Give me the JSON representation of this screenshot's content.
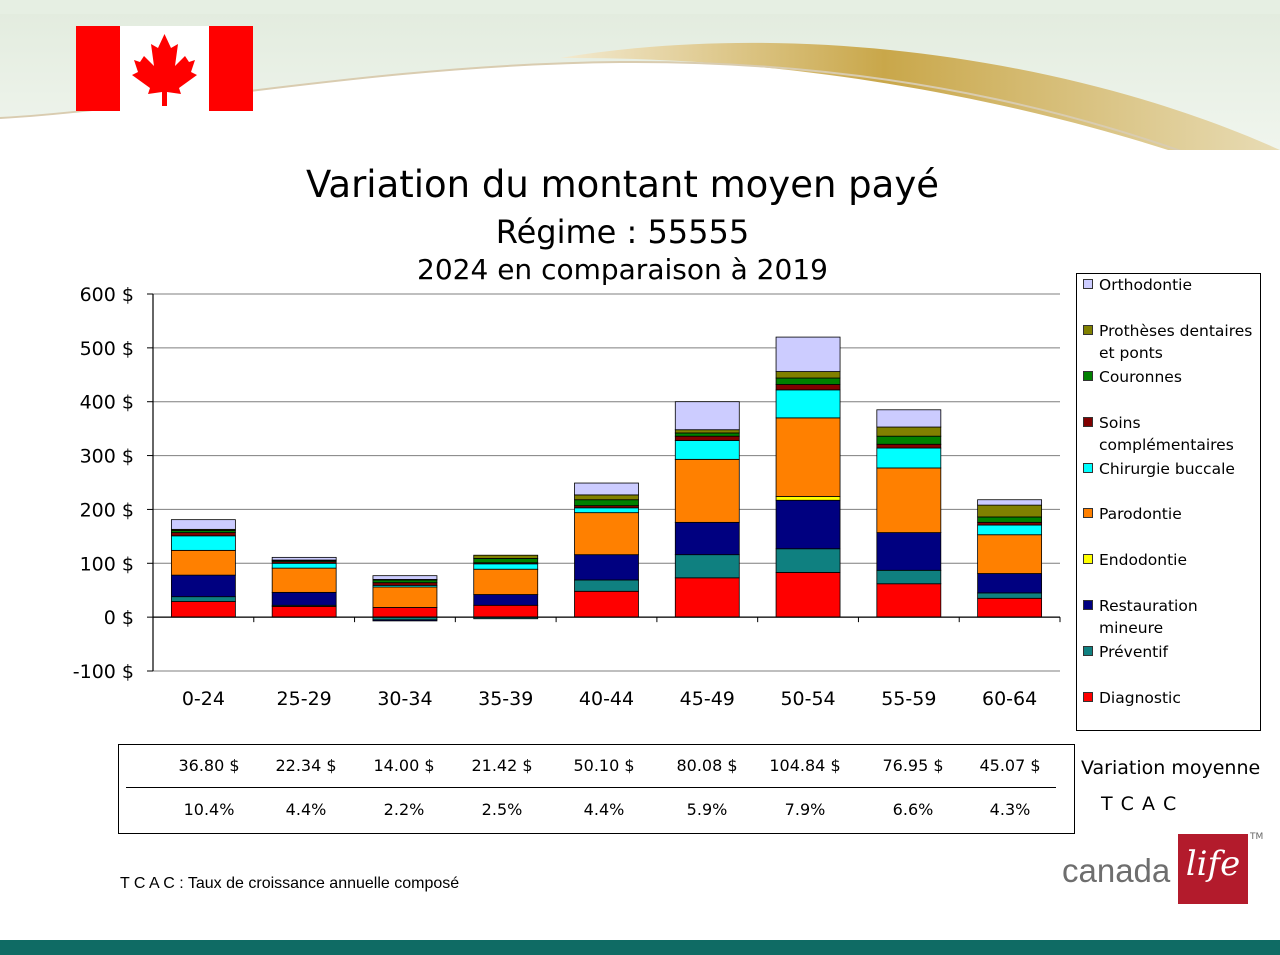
{
  "slide": {
    "title": "Variation du montant moyen payé",
    "subtitle": "Régime : 55555",
    "subtitle2": "2024 en comparaison à 2019",
    "footnote": "T C A C : Taux de croissance annuelle composé",
    "logo_text": "canada",
    "logo_script": "life",
    "logo_tm": "TM"
  },
  "colors": {
    "flag_red": "#ff0000",
    "footer_teal": "#0f6b64",
    "swoosh_gold": "#c9a74a",
    "logo_red": "#b31b2c"
  },
  "chart_data": {
    "type": "bar",
    "stacked": true,
    "categories": [
      "0-24",
      "25-29",
      "30-34",
      "35-39",
      "40-44",
      "45-49",
      "50-54",
      "55-59",
      "60-64"
    ],
    "yticks": [
      "-100 $",
      "0 $",
      "100 $",
      "200 $",
      "300 $",
      "400 $",
      "500 $",
      "600 $"
    ],
    "ylim": [
      -100,
      600
    ],
    "grid": true,
    "legend_position": "right",
    "series": [
      {
        "name": "Diagnostic",
        "color": "#ff0000",
        "values": [
          29,
          20,
          18,
          22,
          48,
          73,
          83,
          62,
          35
        ]
      },
      {
        "name": "Préventif",
        "color": "#0f8080",
        "values": [
          9,
          2,
          -5,
          -3,
          21,
          43,
          44,
          25,
          10
        ]
      },
      {
        "name": "Restauration mineure",
        "color": "#000080",
        "values": [
          40,
          24,
          -2,
          20,
          47,
          60,
          90,
          70,
          36
        ]
      },
      {
        "name": "Endodontie",
        "color": "#ffff00",
        "values": [
          0,
          0,
          0,
          0,
          0,
          0,
          7,
          0,
          0
        ]
      },
      {
        "name": "Parodontie",
        "color": "#ff8000",
        "values": [
          46,
          45,
          38,
          47,
          78,
          117,
          146,
          120,
          72
        ]
      },
      {
        "name": "Chirurgie buccale",
        "color": "#00ffff",
        "values": [
          27,
          9,
          3,
          10,
          9,
          35,
          52,
          37,
          18
        ]
      },
      {
        "name": "Soins complémentaires",
        "color": "#800000",
        "values": [
          6,
          3,
          5,
          2,
          4,
          8,
          10,
          7,
          5
        ]
      },
      {
        "name": "Couronnes",
        "color": "#008000",
        "values": [
          4,
          2,
          5,
          8,
          11,
          6,
          12,
          15,
          10
        ]
      },
      {
        "name": "Prothèses dentaires et ponts",
        "color": "#808000",
        "values": [
          2,
          1,
          1,
          6,
          9,
          6,
          12,
          17,
          22
        ]
      },
      {
        "name": "Orthodontie",
        "color": "#ccccff",
        "values": [
          18,
          5,
          7,
          0,
          22,
          52,
          64,
          32,
          10
        ]
      }
    ],
    "legend_order": [
      "Orthodontie",
      "Prothèses dentaires et ponts",
      "Couronnes",
      "Soins complémentaires",
      "Chirurgie buccale",
      "Parodontie",
      "Endodontie",
      "Restauration mineure",
      "Préventif",
      "Diagnostic"
    ],
    "table": {
      "row1_label": "Variation moyenne",
      "row2_label": "T C A C",
      "row1": [
        "36.80 $",
        "22.34 $",
        "14.00 $",
        "21.42 $",
        "50.10 $",
        "80.08 $",
        "104.84 $",
        "76.95 $",
        "45.07 $"
      ],
      "row2": [
        "10.4%",
        "4.4%",
        "2.2%",
        "2.5%",
        "4.4%",
        "5.9%",
        "7.9%",
        "6.6%",
        "4.3%"
      ]
    }
  }
}
